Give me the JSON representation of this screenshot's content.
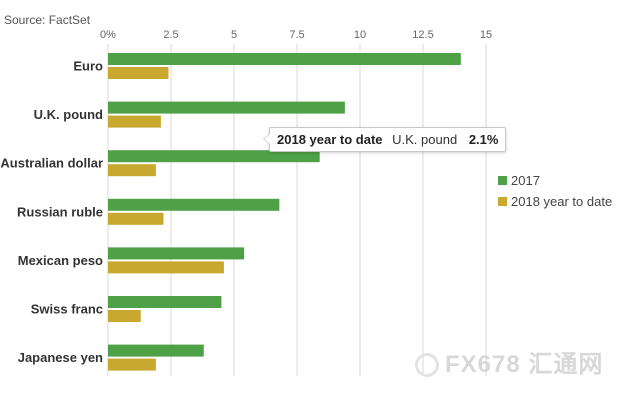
{
  "source": "Source: FactSet",
  "colors": {
    "s2017": "#4ea146",
    "s2018": "#c9a830",
    "grid": "#d9d9d9"
  },
  "chart_data": {
    "type": "bar",
    "orientation": "horizontal",
    "categories": [
      "Euro",
      "U.K. pound",
      "Australian dollar",
      "Russian ruble",
      "Mexican peso",
      "Swiss franc",
      "Japanese yen"
    ],
    "series": [
      {
        "name": "2017",
        "values": [
          14.0,
          9.4,
          8.4,
          6.8,
          5.4,
          4.5,
          3.8
        ]
      },
      {
        "name": "2018 year to date",
        "values": [
          2.4,
          2.1,
          1.9,
          2.2,
          4.6,
          1.3,
          1.9
        ]
      }
    ],
    "xlim": [
      0,
      15
    ],
    "xticks": [
      "0%",
      "2.5",
      "5",
      "7.5",
      "10",
      "12.5",
      "15"
    ],
    "xtick_values": [
      0,
      2.5,
      5,
      7.5,
      10,
      12.5,
      15
    ],
    "grid": true,
    "legend": {
      "placement": "right",
      "entries": [
        "2017",
        "2018 year to date"
      ]
    },
    "title": "",
    "xlabel": "",
    "ylabel": ""
  },
  "tooltip": {
    "series": "2018 year to date",
    "category": "U.K. pound",
    "value": "2.1%"
  },
  "watermark": "FX678 汇通网"
}
